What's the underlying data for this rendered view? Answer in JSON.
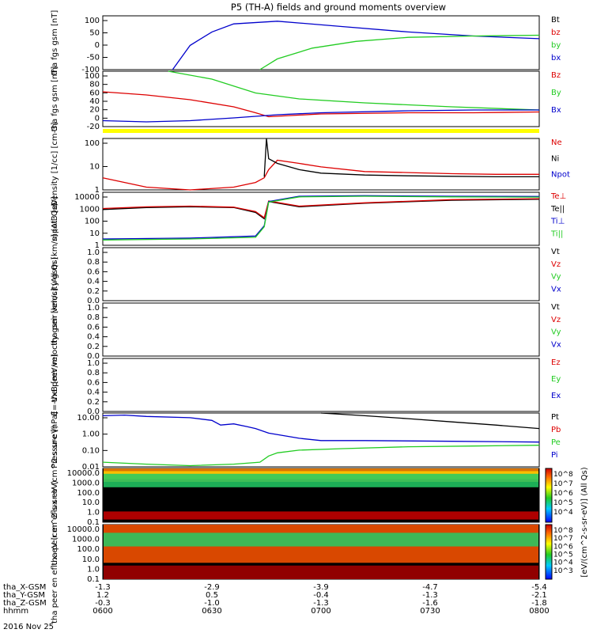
{
  "title": "P5 (TH-A) fields and ground moments overview",
  "date_label": "2016 Nov 25",
  "colorbar_units": "[eV/(cm^2-s-sr-eV)] (All Qs)",
  "colorbar_ticks": [
    "10^8",
    "10^7",
    "10^6",
    "10^5",
    "10^4"
  ],
  "colorbar_ticks2": [
    "10^8",
    "10^7",
    "10^6",
    "10^5",
    "10^4",
    "10^3"
  ],
  "xaxis": {
    "rows": [
      {
        "label": "tha_X-GSM",
        "values": [
          "-1.3",
          "-2.9",
          "-3.9",
          "-4.7",
          "-5.4"
        ]
      },
      {
        "label": "tha_Y-GSM",
        "values": [
          "1.2",
          "0.5",
          "-0.4",
          "-1.3",
          "-2.1"
        ]
      },
      {
        "label": "tha_Z-GSM",
        "values": [
          "-0.3",
          "-1.0",
          "-1.3",
          "-1.6",
          "-1.8"
        ]
      },
      {
        "label": "hhmm",
        "values": [
          "0600",
          "0630",
          "0700",
          "0730",
          "0800"
        ]
      }
    ]
  },
  "colors": {
    "black": "#000000",
    "red": "#dd0000",
    "green": "#22cc22",
    "blue": "#0000cc",
    "yellow": "#ffff00"
  },
  "chart_data": [
    {
      "type": "line",
      "ylabel": "tha fgs gsm [nT]",
      "ylim": [
        -100,
        100
      ],
      "yticks": [
        "100",
        "50",
        "0",
        "-50",
        "-100"
      ],
      "legend": [
        "Bt",
        "bz",
        "by",
        "bx"
      ],
      "series": [
        {
          "name": "bx",
          "x": [
            0.16,
            0.2,
            0.25,
            0.3,
            0.4,
            0.55,
            0.7,
            0.85,
            1.0
          ],
          "values": [
            -100,
            -10,
            40,
            70,
            80,
            60,
            40,
            25,
            15
          ]
        },
        {
          "name": "by",
          "x": [
            0.36,
            0.4,
            0.48,
            0.58,
            0.7,
            0.85,
            1.0
          ],
          "values": [
            -100,
            -60,
            -20,
            5,
            20,
            25,
            28
          ]
        }
      ]
    },
    {
      "type": "line",
      "ylabel": "tha fgs gsm [nT]",
      "ylim": [
        -40,
        100
      ],
      "yticks": [
        "100",
        "80",
        "60",
        "40",
        "20",
        "0",
        "-20"
      ],
      "legend": [
        "Bz",
        "By",
        "Bx"
      ],
      "series": [
        {
          "name": "Bz",
          "x": [
            0,
            0.1,
            0.2,
            0.3,
            0.35,
            0.38,
            0.5,
            0.7,
            0.85,
            1.0
          ],
          "values": [
            48,
            40,
            28,
            10,
            -5,
            -15,
            -8,
            -5,
            -5,
            -3
          ]
        },
        {
          "name": "By",
          "x": [
            0.15,
            0.25,
            0.35,
            0.45,
            0.6,
            0.8,
            1.0
          ],
          "values": [
            100,
            80,
            45,
            30,
            20,
            10,
            2
          ]
        },
        {
          "name": "Bx",
          "x": [
            0,
            0.1,
            0.2,
            0.3,
            0.4,
            0.5,
            0.7,
            0.85,
            1.0
          ],
          "values": [
            -25,
            -28,
            -25,
            -18,
            -10,
            -5,
            0,
            2,
            2
          ]
        }
      ]
    },
    {
      "type": "line",
      "ylabel": "Density [1/cc] [cm-3]",
      "yscale": "log",
      "ylim": [
        0.1,
        200
      ],
      "yticks": [
        "100",
        "10",
        "1"
      ],
      "legend": [
        "Ne",
        "Ni",
        "Npot"
      ],
      "series": [
        {
          "name": "Ne",
          "x": [
            0,
            0.05,
            0.1,
            0.2,
            0.3,
            0.35,
            0.37,
            0.38,
            0.4,
            0.45,
            0.5,
            0.6,
            0.7,
            0.8,
            0.9,
            1.0
          ],
          "values": [
            0.6,
            0.3,
            0.15,
            0.1,
            0.15,
            0.3,
            0.6,
            2,
            8,
            5,
            3,
            1.5,
            1.3,
            1.1,
            1.0,
            1.0
          ]
        },
        {
          "name": "Ni",
          "x": [
            0.37,
            0.375,
            0.38,
            0.4,
            0.45,
            0.5,
            0.6,
            0.7,
            0.8,
            0.9,
            1.0
          ],
          "values": [
            0.7,
            200,
            10,
            5,
            2,
            1.2,
            0.9,
            0.8,
            0.75,
            0.7,
            0.7
          ]
        }
      ]
    },
    {
      "type": "line",
      "ylabel": "mpot3 [eV]",
      "yscale": "log",
      "ylim": [
        1,
        10000
      ],
      "yticks": [
        "10000",
        "1000",
        "100",
        "10",
        "1"
      ],
      "legend": [
        "Te⊥",
        "Te||",
        "Ti⊥",
        "Ti||"
      ],
      "series": [
        {
          "name": "Te||",
          "x": [
            0,
            0.1,
            0.2,
            0.3,
            0.35,
            0.37,
            0.38,
            0.45,
            0.6,
            0.8,
            1.0
          ],
          "values": [
            500,
            700,
            800,
            700,
            300,
            100,
            2000,
            800,
            1500,
            2500,
            3000
          ]
        },
        {
          "name": "Te⊥",
          "x": [
            0,
            0.1,
            0.2,
            0.3,
            0.35,
            0.37,
            0.38,
            0.45,
            0.6,
            0.8,
            1.0
          ],
          "values": [
            600,
            800,
            900,
            750,
            350,
            120,
            2200,
            900,
            1600,
            2800,
            3300
          ]
        },
        {
          "name": "Ti⊥",
          "x": [
            0,
            0.2,
            0.35,
            0.37,
            0.38,
            0.45,
            0.6,
            0.8,
            1.0
          ],
          "values": [
            3,
            3.5,
            5,
            30,
            2000,
            5000,
            5500,
            5000,
            4800
          ]
        },
        {
          "name": "Ti||",
          "x": [
            0,
            0.2,
            0.35,
            0.37,
            0.38,
            0.45,
            0.6,
            0.8,
            1.0
          ],
          "values": [
            2.5,
            3,
            4,
            25,
            1800,
            4500,
            5000,
            4500,
            4300
          ]
        }
      ]
    },
    {
      "type": "line",
      "ylabel": "tha peir velocity gsm [km/s] (All Qs)",
      "ylim": [
        0,
        1
      ],
      "yticks": [
        "1.0",
        "0.8",
        "0.6",
        "0.4",
        "0.2",
        "0.0"
      ],
      "legend": [
        "Vt",
        "Vz",
        "Vy",
        "Vx"
      ],
      "series": []
    },
    {
      "type": "line",
      "ylabel": "tha peer velocity gsm [km/s] (All Qs)",
      "ylim": [
        0,
        1
      ],
      "yticks": [
        "1.0",
        "0.8",
        "0.6",
        "0.4",
        "0.2",
        "0.0"
      ],
      "legend": [
        "Vt",
        "Vz",
        "Vy",
        "Vx"
      ],
      "series": []
    },
    {
      "type": "line",
      "ylabel": "E=-VxB [mV/m]",
      "ylim": [
        0,
        1
      ],
      "yticks": [
        "1.0",
        "0.8",
        "0.6",
        "0.4",
        "0.2",
        "0.0"
      ],
      "legend": [
        "Ez",
        "Ey",
        "Ex"
      ],
      "series": []
    },
    {
      "type": "line",
      "ylabel": "Pressure [nPa]",
      "yscale": "log",
      "ylim": [
        0.01,
        30
      ],
      "yticks": [
        "10.00",
        "1.00",
        "0.10",
        "0.01"
      ],
      "legend": [
        "Pt",
        "Pb",
        "Pe",
        "Pi"
      ],
      "series": [
        {
          "name": "Pi",
          "x": [
            0,
            0.05,
            0.1,
            0.2,
            0.25,
            0.27,
            0.3,
            0.33,
            0.35,
            0.38,
            0.45,
            0.5,
            0.6,
            0.8,
            1.0
          ],
          "values": [
            20,
            22,
            18,
            15,
            10,
            5,
            6,
            4,
            3,
            1.5,
            0.7,
            0.5,
            0.5,
            0.45,
            0.4
          ]
        },
        {
          "name": "Pe",
          "x": [
            0,
            0.1,
            0.2,
            0.3,
            0.36,
            0.38,
            0.4,
            0.45,
            0.55,
            0.7,
            0.85,
            1.0
          ],
          "values": [
            0.02,
            0.015,
            0.012,
            0.015,
            0.02,
            0.05,
            0.08,
            0.12,
            0.15,
            0.2,
            0.22,
            0.25
          ]
        },
        {
          "name": "Pt",
          "x": [
            0.5,
            0.6,
            0.7,
            0.8,
            0.9,
            1.0
          ],
          "values": [
            30,
            20,
            13,
            8,
            5,
            3
          ]
        }
      ]
    },
    {
      "type": "heatmap",
      "ylabel": "tha peir en eflux eV (cm^2-s-sr-eV)",
      "yscale": "log",
      "ylim": [
        0.1,
        20000
      ],
      "yticks": [
        "10000.0",
        "1000.0",
        "100.0",
        "10.0",
        "1.0",
        "0.1"
      ]
    },
    {
      "type": "heatmap",
      "ylabel": "tha peer en eflux eV (cm^2-s-sr-eV)",
      "yscale": "log",
      "ylim": [
        0.1,
        20000
      ],
      "yticks": [
        "10000.0",
        "1000.0",
        "100.0",
        "10.0",
        "1.0",
        "0.1"
      ]
    }
  ]
}
